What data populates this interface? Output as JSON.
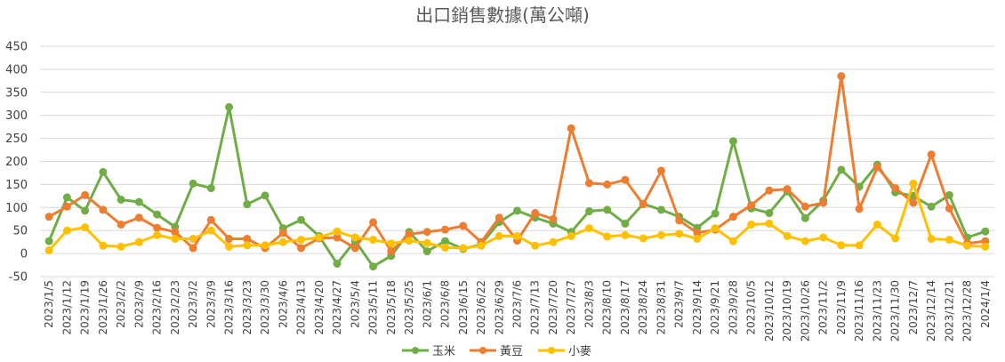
{
  "chart_data": {
    "type": "line",
    "title": "出口銷售數據(萬公噸)",
    "xlabel": "",
    "ylabel": "",
    "ylim": [
      -50,
      450
    ],
    "yticks": [
      -50,
      0,
      50,
      100,
      150,
      200,
      250,
      300,
      350,
      400,
      450
    ],
    "grid": true,
    "legend_position": "bottom",
    "categories": [
      "2023/1/5",
      "2023/1/12",
      "2023/1/19",
      "2023/1/26",
      "2023/2/2",
      "2023/2/9",
      "2023/2/16",
      "2023/2/23",
      "2023/3/2",
      "2023/3/9",
      "2023/3/16",
      "2023/3/23",
      "2023/3/30",
      "2023/4/6",
      "2023/4/13",
      "2023/4/20",
      "2023/4/27",
      "2023/5/4",
      "2023/5/11",
      "2023/5/18",
      "2023/5/25",
      "2023/6/1",
      "2023/6/8",
      "2023/6/15",
      "2023/6/22",
      "2023/6/29",
      "2023/7/6",
      "2023/7/13",
      "2023/7/20",
      "2023/7/27",
      "2023/8/3",
      "2023/8/10",
      "2023/8/17",
      "2023/8/24",
      "2023/8/31",
      "2023/9/7",
      "2023/9/14",
      "2023/9/21",
      "2023/9/28",
      "2023/10/5",
      "2023/10/12",
      "2023/10/19",
      "2023/10/26",
      "2023/11/2",
      "2023/11/9",
      "2023/11/16",
      "2023/11/23",
      "2023/11/30",
      "2023/12/7",
      "2023/12/14",
      "2023/12/21",
      "2023/12/28",
      "2024/1/4"
    ],
    "series": [
      {
        "name": "玉米",
        "color": "#70ad47",
        "values": [
          27,
          122,
          93,
          177,
          117,
          112,
          85,
          58,
          152,
          142,
          318,
          107,
          126,
          55,
          73,
          38,
          -22,
          28,
          -28,
          -5,
          47,
          5,
          27,
          10,
          20,
          68,
          93,
          78,
          65,
          47,
          92,
          95,
          65,
          108,
          95,
          80,
          56,
          87,
          244,
          98,
          88,
          135,
          77,
          115,
          182,
          145,
          193,
          133,
          125,
          102,
          127,
          35,
          48
        ]
      },
      {
        "name": "黃豆",
        "color": "#ed7d31",
        "values": [
          80,
          102,
          127,
          95,
          63,
          78,
          56,
          47,
          12,
          73,
          32,
          32,
          12,
          45,
          12,
          33,
          35,
          12,
          68,
          5,
          42,
          47,
          52,
          60,
          25,
          78,
          28,
          88,
          75,
          272,
          153,
          150,
          160,
          107,
          180,
          72,
          45,
          52,
          80,
          105,
          137,
          140,
          102,
          110,
          385,
          97,
          187,
          142,
          110,
          215,
          98,
          22,
          27
        ]
      },
      {
        "name": "小麥",
        "color": "#ffc000",
        "values": [
          7,
          50,
          57,
          17,
          15,
          25,
          40,
          32,
          32,
          50,
          15,
          18,
          18,
          25,
          30,
          35,
          48,
          35,
          30,
          22,
          28,
          23,
          13,
          12,
          17,
          38,
          38,
          17,
          25,
          38,
          55,
          37,
          40,
          33,
          40,
          43,
          32,
          55,
          27,
          63,
          65,
          38,
          27,
          35,
          18,
          18,
          63,
          33,
          152,
          32,
          30,
          17,
          15
        ]
      }
    ]
  }
}
